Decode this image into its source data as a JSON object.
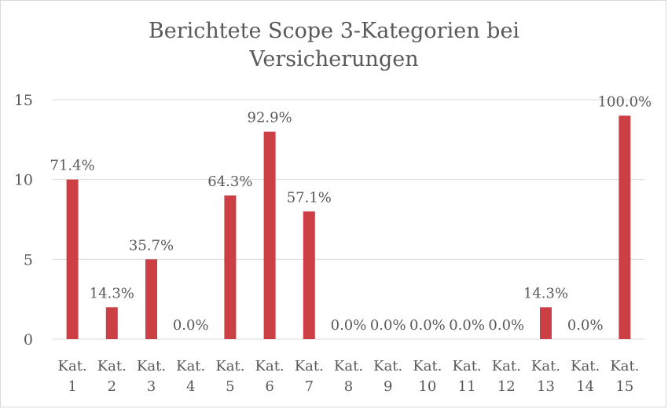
{
  "chart_data": {
    "type": "bar",
    "title_lines": [
      "Berichtete Scope 3-Kategorien bei",
      "Versicherungen"
    ],
    "xlabel": "",
    "ylabel": "",
    "ylim": [
      0,
      15
    ],
    "yticks": [
      0,
      5,
      10,
      15
    ],
    "grid": true,
    "legend": "none",
    "bar_color": "#cc3f45",
    "grid_color": "#d9d9d9",
    "axis_color": "#d9d9d9",
    "categories": [
      [
        "Kat.",
        "1"
      ],
      [
        "Kat.",
        "2"
      ],
      [
        "Kat.",
        "3"
      ],
      [
        "Kat.",
        "4"
      ],
      [
        "Kat.",
        "5"
      ],
      [
        "Kat.",
        "6"
      ],
      [
        "Kat.",
        "7"
      ],
      [
        "Kat.",
        "8"
      ],
      [
        "Kat.",
        "9"
      ],
      [
        "Kat.",
        "10"
      ],
      [
        "Kat.",
        "11"
      ],
      [
        "Kat.",
        "12"
      ],
      [
        "Kat.",
        "13"
      ],
      [
        "Kat.",
        "14"
      ],
      [
        "Kat.",
        "15"
      ]
    ],
    "values": [
      10,
      2,
      5,
      0,
      9,
      13,
      8,
      0,
      0,
      0,
      0,
      0,
      2,
      0,
      14
    ],
    "data_labels": [
      "71.4%",
      "14.3%",
      "35.7%",
      "0.0%",
      "64.3%",
      "92.9%",
      "57.1%",
      "0.0%",
      "0.0%",
      "0.0%",
      "0.0%",
      "0.0%",
      "14.3%",
      "0.0%",
      "100.0%"
    ]
  }
}
